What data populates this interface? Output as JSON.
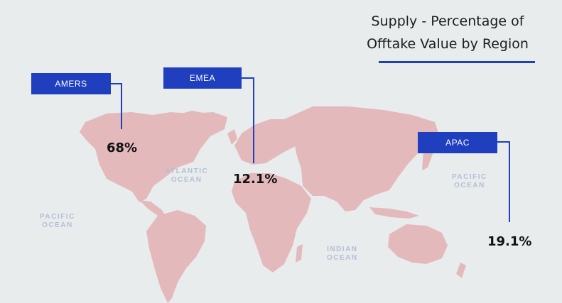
{
  "title": "Supply - Percentage of Offtake Value by Region",
  "colors": {
    "background": "#e8ecec",
    "land": "#e4b9bc",
    "accent": "#1f3fbf",
    "ocean_label": "#b4bfd6"
  },
  "regions": [
    {
      "label": "AMERS",
      "value": "68%"
    },
    {
      "label": "EMEA",
      "value": "12.1%"
    },
    {
      "label": "APAC",
      "value": "19.1%"
    }
  ],
  "oceans": {
    "atlantic": {
      "line1": "ATLANTIC",
      "line2": "OCEAN"
    },
    "pacific_west": {
      "line1": "PACIFIC",
      "line2": "OCEAN"
    },
    "pacific_east": {
      "line1": "PACIFIC",
      "line2": "OCEAN"
    },
    "indian": {
      "line1": "INDIAN",
      "line2": "OCEAN"
    }
  }
}
